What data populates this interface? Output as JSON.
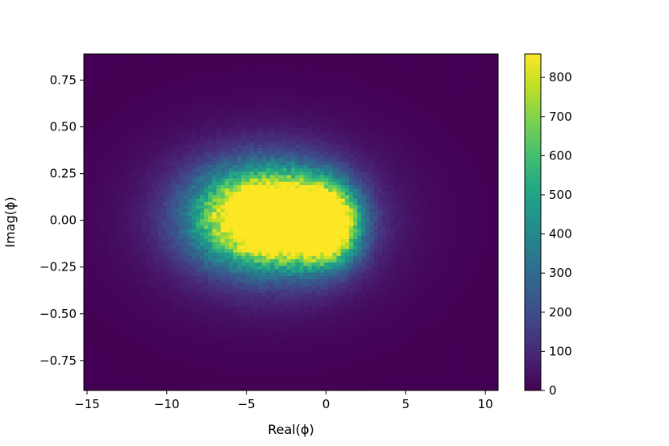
{
  "chart_data": {
    "type": "heatmap",
    "title": "",
    "xlabel": "Real(ϕ)",
    "ylabel": "Imag(ϕ)",
    "xlim": [
      -15.2,
      10.8
    ],
    "ylim": [
      -0.91,
      0.89
    ],
    "x_ticks": [
      {
        "value": -15,
        "label": "−15"
      },
      {
        "value": -10,
        "label": "−10"
      },
      {
        "value": -5,
        "label": "−5"
      },
      {
        "value": 0,
        "label": "0"
      },
      {
        "value": 5,
        "label": "5"
      },
      {
        "value": 10,
        "label": "10"
      }
    ],
    "y_ticks": [
      {
        "value": 0.75,
        "label": "0.75"
      },
      {
        "value": 0.5,
        "label": "0.50"
      },
      {
        "value": 0.25,
        "label": "0.25"
      },
      {
        "value": 0.0,
        "label": "0.00"
      },
      {
        "value": -0.25,
        "label": "−0.25"
      },
      {
        "value": -0.5,
        "label": "−0.50"
      },
      {
        "value": -0.75,
        "label": "−0.75"
      }
    ],
    "bins": {
      "x_count": 100,
      "y_count": 100
    },
    "distribution": {
      "description_of_density": "2D histogram counts",
      "peak_count": 860,
      "components": [
        {
          "x_center": -4.8,
          "y_center": 0.02,
          "x_sigma": 2.6,
          "y_sigma": 0.17,
          "peak": 820
        },
        {
          "x_center": -1.8,
          "y_center": 0.0,
          "x_sigma": 2.2,
          "y_sigma": 0.16,
          "peak": 820
        },
        {
          "x_center": 0.2,
          "y_center": -0.03,
          "x_sigma": 1.2,
          "y_sigma": 0.13,
          "peak": 780
        },
        {
          "x_center": -3.5,
          "y_center": 0.0,
          "x_sigma": 5.0,
          "y_sigma": 0.3,
          "peak": 170
        }
      ]
    },
    "colorbar": {
      "min": 0,
      "max": 860,
      "ticks": [
        0,
        100,
        200,
        300,
        400,
        500,
        600,
        700,
        800
      ],
      "colormap": "viridis"
    },
    "grid": false,
    "legend": "none"
  }
}
